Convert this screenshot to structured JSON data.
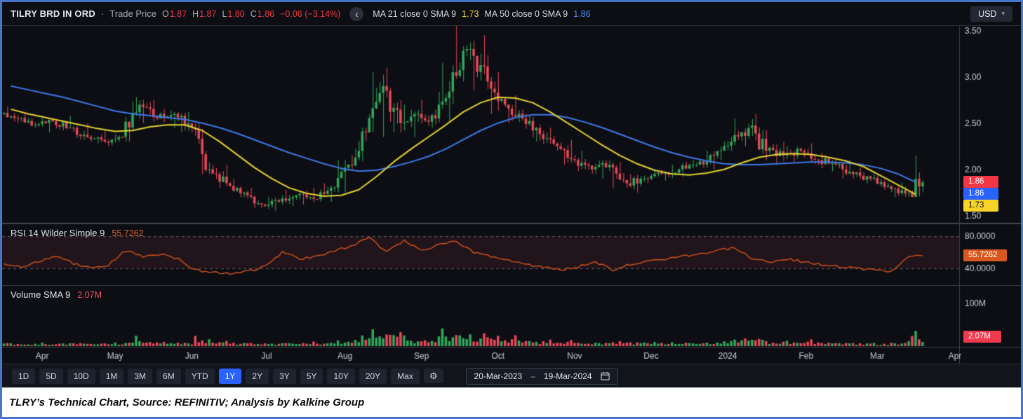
{
  "header": {
    "symbol": "TILRY BRD IN ORD",
    "dot": "·",
    "series_label": "Trade Price",
    "ohlc": {
      "o_label": "O",
      "o": "1.87",
      "h_label": "H",
      "h": "1.87",
      "l_label": "L",
      "l": "1.80",
      "c_label": "C",
      "c": "1.86",
      "change": "−0.06 (−3.14%)"
    },
    "ma21": {
      "label": "MA 21 close 0 SMA 9",
      "value": "1.73"
    },
    "ma50": {
      "label": "MA 50 close 0 SMA 9",
      "value": "1.86"
    },
    "currency": "USD"
  },
  "icons": {
    "chevron_left": "‹",
    "chevron_down": "▾",
    "gear": "⚙"
  },
  "panels": {
    "rsi": {
      "label": "RSI 14 Wilder Simple 9",
      "value": "55.7262"
    },
    "volume": {
      "label": "Volume SMA 9",
      "value": "2.07M"
    }
  },
  "axis": {
    "price_ticks": [
      {
        "label": "3.50",
        "value": 3.5
      },
      {
        "label": "3.00",
        "value": 3.0
      },
      {
        "label": "2.50",
        "value": 2.5
      },
      {
        "label": "2.00",
        "value": 2.0
      },
      {
        "label": "1.50",
        "value": 1.5
      }
    ],
    "rsi_ticks": [
      {
        "label": "80.0000",
        "value": 80
      },
      {
        "label": "40.0000",
        "value": 40
      }
    ],
    "volume_ticks": [
      {
        "label": "100M",
        "value": 100
      }
    ],
    "badges": {
      "last": "1.86",
      "ma50": "1.86",
      "ma21": "1.73",
      "rsi": "55.7262",
      "volume": "2.07M"
    }
  },
  "toolbar": {
    "ranges": [
      "1D",
      "5D",
      "10D",
      "1M",
      "3M",
      "6M",
      "YTD",
      "1Y",
      "2Y",
      "3Y",
      "5Y",
      "10Y",
      "20Y",
      "Max"
    ],
    "selected": "1Y",
    "date_from": "20-Mar-2023",
    "date_sep": "–",
    "date_to": "19-Mar-2024"
  },
  "caption": "TLRY’s Technical Chart, Source: REFINITIV; Analysis by Kalkine Group",
  "colors": {
    "bg": "#0d0e13",
    "up": "#2fa85c",
    "down": "#e8485a",
    "ma21": "#e3d22f",
    "ma50": "#3d78e8",
    "rsi_line": "#c8501e",
    "band": "rgba(178,62,92,0.12)",
    "dashed": "rgba(160,163,175,0.55)",
    "grid": "#3c3f48",
    "sep_bright": "#565963",
    "axis_text": "#c9ccd3"
  },
  "chart_data": {
    "type": "candlestick",
    "title": "TILRY BRD IN ORD · Trade Price · 1Y (weekly approximation)",
    "x_unit": "week_index_from_20-Mar-2023",
    "x_max": 55,
    "price_axis": [
      1.43,
      3.55
    ],
    "rsi_axis": [
      20,
      95
    ],
    "volume_axis_max_m": 140,
    "month_ticks": [
      {
        "label": "Apr",
        "i": 1.8
      },
      {
        "label": "May",
        "i": 6.0
      },
      {
        "label": "Jun",
        "i": 10.4
      },
      {
        "label": "Jul",
        "i": 14.7
      },
      {
        "label": "Aug",
        "i": 19.2
      },
      {
        "label": "Sep",
        "i": 23.6
      },
      {
        "label": "Oct",
        "i": 28.0
      },
      {
        "label": "Nov",
        "i": 32.4
      },
      {
        "label": "Dec",
        "i": 36.8
      },
      {
        "label": "2024",
        "i": 41.2
      },
      {
        "label": "Feb",
        "i": 45.7
      },
      {
        "label": "Mar",
        "i": 49.8
      },
      {
        "label": "Apr",
        "i": 54.3
      }
    ],
    "open": [
      2.6,
      2.55,
      2.48,
      2.52,
      2.45,
      2.35,
      2.3,
      2.35,
      2.7,
      2.55,
      2.6,
      2.45,
      2.0,
      1.85,
      1.75,
      1.62,
      1.65,
      1.72,
      1.68,
      1.8,
      2.05,
      2.4,
      2.9,
      2.5,
      2.6,
      2.55,
      3.05,
      3.3,
      2.95,
      2.7,
      2.55,
      2.38,
      2.25,
      2.1,
      2.0,
      2.05,
      1.85,
      1.9,
      1.95,
      2.0,
      2.05,
      2.15,
      2.3,
      2.45,
      2.2,
      2.15,
      2.2,
      2.1,
      2.05,
      1.95,
      1.9,
      1.82,
      1.74
    ],
    "high": [
      2.68,
      2.6,
      2.55,
      2.58,
      2.5,
      2.42,
      2.38,
      2.78,
      2.75,
      2.65,
      2.62,
      2.5,
      2.05,
      1.9,
      1.8,
      1.7,
      1.78,
      1.8,
      1.85,
      2.1,
      2.45,
      3.05,
      3.1,
      2.7,
      2.75,
      3.15,
      3.59,
      3.45,
      3.05,
      2.8,
      2.6,
      2.45,
      2.32,
      2.2,
      2.1,
      2.08,
      1.95,
      2.0,
      2.05,
      2.1,
      2.2,
      2.35,
      2.55,
      2.6,
      2.3,
      2.25,
      2.28,
      2.18,
      2.1,
      2.02,
      1.95,
      1.86,
      2.15
    ],
    "low": [
      2.5,
      2.45,
      2.4,
      2.42,
      2.32,
      2.28,
      2.25,
      2.3,
      2.5,
      2.45,
      2.4,
      1.95,
      1.8,
      1.7,
      1.58,
      1.55,
      1.6,
      1.62,
      1.65,
      1.75,
      2.0,
      2.35,
      2.4,
      2.35,
      2.45,
      2.5,
      2.95,
      2.85,
      2.6,
      2.5,
      2.3,
      2.2,
      2.05,
      1.95,
      1.9,
      1.8,
      1.75,
      1.85,
      1.88,
      1.92,
      2.0,
      2.1,
      2.25,
      2.1,
      2.05,
      2.08,
      2.05,
      1.98,
      1.9,
      1.85,
      1.78,
      1.7,
      1.7
    ],
    "close": [
      2.55,
      2.48,
      2.52,
      2.45,
      2.35,
      2.3,
      2.35,
      2.7,
      2.55,
      2.6,
      2.45,
      2.0,
      1.85,
      1.75,
      1.62,
      1.65,
      1.72,
      1.68,
      1.8,
      2.05,
      2.4,
      2.9,
      2.5,
      2.6,
      2.55,
      3.05,
      3.3,
      2.95,
      2.7,
      2.55,
      2.38,
      2.25,
      2.1,
      2.0,
      2.05,
      1.85,
      1.9,
      1.95,
      2.0,
      2.05,
      2.15,
      2.3,
      2.45,
      2.2,
      2.15,
      2.2,
      2.1,
      2.05,
      1.95,
      1.9,
      1.82,
      1.74,
      1.86
    ],
    "ma21": [
      2.65,
      2.6,
      2.56,
      2.52,
      2.48,
      2.44,
      2.41,
      2.42,
      2.46,
      2.48,
      2.48,
      2.42,
      2.3,
      2.16,
      2.02,
      1.9,
      1.8,
      1.74,
      1.71,
      1.72,
      1.78,
      1.92,
      2.08,
      2.22,
      2.35,
      2.48,
      2.62,
      2.72,
      2.78,
      2.77,
      2.72,
      2.62,
      2.5,
      2.38,
      2.26,
      2.15,
      2.06,
      1.99,
      1.95,
      1.94,
      1.96,
      2.0,
      2.07,
      2.13,
      2.16,
      2.17,
      2.16,
      2.13,
      2.09,
      2.03,
      1.93,
      1.83,
      1.73
    ],
    "ma50": [
      2.9,
      2.86,
      2.82,
      2.78,
      2.73,
      2.68,
      2.63,
      2.6,
      2.58,
      2.56,
      2.54,
      2.5,
      2.45,
      2.39,
      2.32,
      2.25,
      2.18,
      2.12,
      2.06,
      2.01,
      1.98,
      1.99,
      2.03,
      2.08,
      2.14,
      2.22,
      2.32,
      2.42,
      2.5,
      2.56,
      2.59,
      2.59,
      2.56,
      2.51,
      2.45,
      2.38,
      2.31,
      2.24,
      2.18,
      2.13,
      2.09,
      2.06,
      2.05,
      2.05,
      2.06,
      2.07,
      2.08,
      2.08,
      2.07,
      2.05,
      2.01,
      1.95,
      1.86
    ],
    "rsi": [
      45,
      42,
      48,
      55,
      46,
      40,
      44,
      62,
      55,
      58,
      52,
      38,
      35,
      33,
      36,
      42,
      60,
      52,
      55,
      62,
      68,
      78,
      60,
      75,
      62,
      70,
      74,
      60,
      55,
      50,
      45,
      42,
      38,
      42,
      48,
      38,
      45,
      50,
      52,
      55,
      58,
      62,
      66,
      52,
      48,
      52,
      48,
      45,
      42,
      40,
      38,
      36,
      55.7262
    ],
    "volume_m": [
      25,
      20,
      18,
      22,
      28,
      20,
      25,
      55,
      35,
      25,
      30,
      60,
      35,
      30,
      25,
      22,
      30,
      25,
      28,
      45,
      70,
      95,
      128,
      60,
      50,
      90,
      100,
      85,
      70,
      55,
      45,
      40,
      35,
      30,
      28,
      32,
      30,
      28,
      25,
      30,
      35,
      45,
      75,
      65,
      40,
      35,
      38,
      30,
      28,
      25,
      22,
      30,
      85
    ]
  }
}
